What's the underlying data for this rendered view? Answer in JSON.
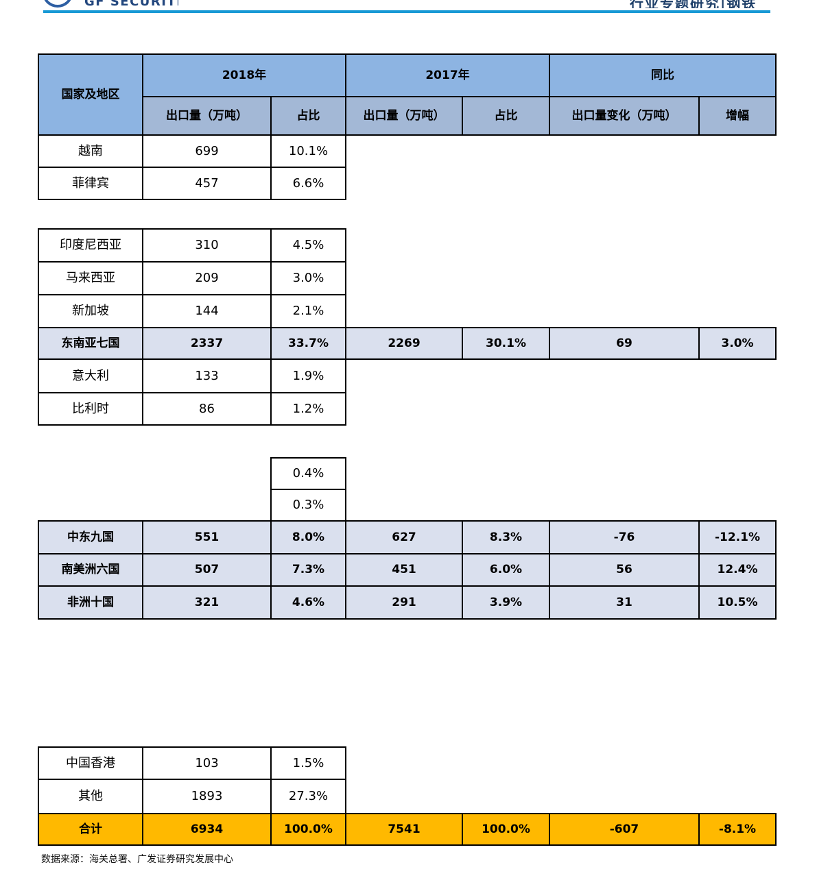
{
  "brand": {
    "logo_text": "GF SECURITIES",
    "right_title": "行业专题研究|钢铁",
    "accent_color": "#1899D5",
    "navy_color": "#1E3F69"
  },
  "table": {
    "header": {
      "region_label": "国家及地区",
      "year_groups": [
        "2018年",
        "2017年",
        "同比"
      ],
      "sub_labels": [
        "出口量（万吨）",
        "占比",
        "出口量（万吨）",
        "占比",
        "出口量变化（万吨）",
        "增幅"
      ]
    },
    "colors": {
      "header_bg": "#8DB4E2",
      "subheader_bg": "#A3B8D6",
      "group_row_bg": "#DAE0EE",
      "total_row_bg": "#FFB900"
    },
    "rows": [
      {
        "type": "country",
        "label": "越南",
        "values": [
          "699",
          "10.1%"
        ]
      },
      {
        "type": "country",
        "label": "菲律宾",
        "values": [
          "457",
          "6.6%"
        ]
      },
      {
        "type": "country",
        "label": "印度尼西亚",
        "values": [
          "310",
          "4.5%"
        ]
      },
      {
        "type": "country",
        "label": "马来西亚",
        "values": [
          "209",
          "3.0%"
        ]
      },
      {
        "type": "country",
        "label": "新加坡",
        "values": [
          "144",
          "2.1%"
        ]
      },
      {
        "type": "group",
        "label": "东南亚七国",
        "values": [
          "2337",
          "33.7%",
          "2269",
          "30.1%",
          "69",
          "3.0%"
        ]
      },
      {
        "type": "country",
        "label": "意大利",
        "values": [
          "133",
          "1.9%"
        ]
      },
      {
        "type": "country",
        "label": "比利时",
        "values": [
          "86",
          "1.2%"
        ]
      },
      {
        "type": "share_only",
        "label": "",
        "values": [
          "0.4%"
        ]
      },
      {
        "type": "share_only",
        "label": "",
        "values": [
          "0.3%"
        ]
      },
      {
        "type": "group",
        "label": "中东九国",
        "values": [
          "551",
          "8.0%",
          "627",
          "8.3%",
          "-76",
          "-12.1%"
        ]
      },
      {
        "type": "group",
        "label": "南美洲六国",
        "values": [
          "507",
          "7.3%",
          "451",
          "6.0%",
          "56",
          "12.4%"
        ]
      },
      {
        "type": "group",
        "label": "非洲十国",
        "values": [
          "321",
          "4.6%",
          "291",
          "3.9%",
          "31",
          "10.5%"
        ]
      },
      {
        "type": "country",
        "label": "中国香港",
        "values": [
          "103",
          "1.5%"
        ]
      },
      {
        "type": "country",
        "label": "其他",
        "values": [
          "1893",
          "27.3%"
        ]
      },
      {
        "type": "total",
        "label": "合计",
        "values": [
          "6934",
          "100.0%",
          "7541",
          "100.0%",
          "-607",
          "-8.1%"
        ]
      }
    ]
  },
  "footer": {
    "source_text": "数据来源：海关总署、广发证券研究发展中心"
  }
}
